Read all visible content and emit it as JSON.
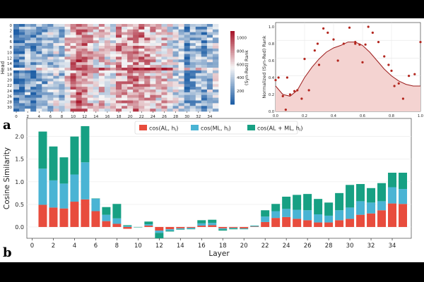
{
  "chart_data": [
    {
      "type": "heatmap",
      "panel": "a",
      "title": "",
      "ylabel": "Head",
      "xlabel": "",
      "x_ticks": [
        "0",
        "2",
        "4",
        "6",
        "8",
        "10",
        "12",
        "14",
        "16",
        "18",
        "20",
        "22",
        "24",
        "26",
        "28",
        "30",
        "32",
        "34"
      ],
      "y_ticks": [
        "0",
        "2",
        "4",
        "6",
        "8",
        "10",
        "12",
        "14",
        "16",
        "18",
        "20",
        "22",
        "24",
        "26",
        "28",
        "30"
      ],
      "n_layers": 36,
      "n_heads": 32,
      "colorbar": {
        "label": "(Syn-Red) Rank",
        "ticks": [
          "200",
          "400",
          "600",
          "800",
          "1000"
        ],
        "range": [
          0,
          1100
        ],
        "low_color": "#1f5fa6",
        "mid_color": "#f5f5f5",
        "high_color": "#a8182c"
      },
      "layer_bias": [
        0.12,
        0.18,
        0.28,
        0.2,
        0.3,
        0.25,
        0.35,
        0.42,
        0.3,
        0.55,
        0.72,
        0.82,
        0.78,
        0.62,
        0.55,
        0.58,
        0.52,
        0.5,
        0.7,
        0.66,
        0.68,
        0.74,
        0.72,
        0.66,
        0.62,
        0.55,
        0.58,
        0.5,
        0.42,
        0.38,
        0.2,
        0.25,
        0.3,
        0.22,
        0.35,
        0.4
      ]
    },
    {
      "type": "scatter",
      "panel": "a",
      "xlabel": "",
      "ylabel": "Normalized (Syn-Red) Rank",
      "xlim": [
        0,
        1.0
      ],
      "ylim": [
        0,
        1.05
      ],
      "x_ticks": [
        "0.0",
        "0.2",
        "0.4",
        "0.6",
        "0.8",
        "1.0"
      ],
      "y_ticks": [
        "0.0",
        "0.2",
        "0.4",
        "0.6",
        "0.8",
        "1.0"
      ],
      "points": [
        [
          0.0,
          0.37
        ],
        [
          0.02,
          0.4
        ],
        [
          0.05,
          0.18
        ],
        [
          0.07,
          0.02
        ],
        [
          0.1,
          0.2
        ],
        [
          0.13,
          0.24
        ],
        [
          0.15,
          0.25
        ],
        [
          0.18,
          0.15
        ],
        [
          0.2,
          0.62
        ],
        [
          0.23,
          0.25
        ],
        [
          0.27,
          0.72
        ],
        [
          0.29,
          0.8
        ],
        [
          0.3,
          0.55
        ],
        [
          0.33,
          0.98
        ],
        [
          0.36,
          0.93
        ],
        [
          0.4,
          0.85
        ],
        [
          0.43,
          0.6
        ],
        [
          0.47,
          0.8
        ],
        [
          0.51,
          0.99
        ],
        [
          0.55,
          0.82
        ],
        [
          0.58,
          0.79
        ],
        [
          0.6,
          0.58
        ],
        [
          0.62,
          0.79
        ],
        [
          0.64,
          1.0
        ],
        [
          0.67,
          0.93
        ],
        [
          0.71,
          0.82
        ],
        [
          0.75,
          0.65
        ],
        [
          0.78,
          0.55
        ],
        [
          0.8,
          0.48
        ],
        [
          0.82,
          0.3
        ],
        [
          0.85,
          0.33
        ],
        [
          0.88,
          0.15
        ],
        [
          0.92,
          0.42
        ],
        [
          0.96,
          0.44
        ],
        [
          1.0,
          0.82
        ],
        [
          0.08,
          0.4
        ],
        [
          0.55,
          0.8
        ]
      ],
      "trend": [
        [
          0.0,
          0.3
        ],
        [
          0.05,
          0.2
        ],
        [
          0.1,
          0.18
        ],
        [
          0.15,
          0.25
        ],
        [
          0.2,
          0.4
        ],
        [
          0.25,
          0.52
        ],
        [
          0.3,
          0.62
        ],
        [
          0.35,
          0.7
        ],
        [
          0.4,
          0.75
        ],
        [
          0.45,
          0.78
        ],
        [
          0.5,
          0.82
        ],
        [
          0.55,
          0.82
        ],
        [
          0.6,
          0.78
        ],
        [
          0.65,
          0.7
        ],
        [
          0.7,
          0.6
        ],
        [
          0.75,
          0.5
        ],
        [
          0.8,
          0.42
        ],
        [
          0.85,
          0.36
        ],
        [
          0.9,
          0.32
        ],
        [
          0.95,
          0.3
        ],
        [
          1.0,
          0.3
        ]
      ],
      "marker_color": "#b3261e",
      "fill_color": "#f4d3d1"
    },
    {
      "type": "bar",
      "panel": "b",
      "stacked": true,
      "xlabel": "Layer",
      "ylabel": "Cosine Similarity",
      "ylim": [
        -0.25,
        2.4
      ],
      "x_ticks": [
        "0",
        "2",
        "4",
        "6",
        "8",
        "10",
        "12",
        "14",
        "16",
        "18",
        "20",
        "22",
        "24",
        "26",
        "28",
        "30",
        "32",
        "34"
      ],
      "y_ticks": [
        "0.0",
        "0.5",
        "1.0",
        "1.5",
        "2.0"
      ],
      "categories": [
        1,
        2,
        3,
        4,
        5,
        6,
        7,
        8,
        9,
        10,
        11,
        12,
        13,
        14,
        15,
        16,
        17,
        18,
        19,
        20,
        21,
        22,
        23,
        24,
        25,
        26,
        27,
        28,
        29,
        30,
        31,
        32,
        33,
        34,
        35
      ],
      "legend": [
        "cos(AL,  h",
        "cos(ML,  h",
        "cos(AL + ML,  h"
      ],
      "legend_sub": "l",
      "series": [
        {
          "name": "cos(AL, h_l)",
          "color": "#e84c3d",
          "values": [
            0.49,
            0.43,
            0.41,
            0.56,
            0.61,
            0.35,
            0.13,
            0.07,
            -0.04,
            0.0,
            0.03,
            -0.08,
            -0.05,
            -0.03,
            -0.02,
            0.03,
            0.04,
            -0.03,
            -0.02,
            -0.03,
            0.01,
            0.11,
            0.2,
            0.22,
            0.18,
            0.15,
            0.1,
            0.1,
            0.15,
            0.18,
            0.27,
            0.3,
            0.37,
            0.52,
            0.51
          ]
        },
        {
          "name": "cos(ML, h_l)",
          "color": "#4ab4d4",
          "values": [
            0.8,
            0.6,
            0.55,
            0.6,
            0.82,
            0.28,
            0.14,
            0.12,
            0.02,
            0.0,
            0.03,
            -0.05,
            -0.03,
            -0.02,
            -0.02,
            0.05,
            0.05,
            -0.02,
            -0.01,
            -0.01,
            0.02,
            0.12,
            0.15,
            0.18,
            0.2,
            0.22,
            0.18,
            0.15,
            0.22,
            0.25,
            0.3,
            0.24,
            0.2,
            0.36,
            0.33
          ]
        },
        {
          "name": "cos(AL + ML, h_l)",
          "color": "#17a083",
          "values": [
            0.82,
            0.75,
            0.58,
            0.84,
            0.8,
            0.0,
            0.17,
            0.32,
            0.02,
            0.0,
            0.06,
            -0.12,
            -0.02,
            -0.01,
            -0.01,
            0.07,
            0.07,
            -0.03,
            -0.02,
            -0.01,
            0.0,
            0.14,
            0.16,
            0.27,
            0.33,
            0.36,
            0.34,
            0.29,
            0.38,
            0.5,
            0.38,
            0.32,
            0.4,
            0.32,
            0.36
          ]
        }
      ]
    }
  ],
  "labels": {
    "panel_a": "a",
    "panel_b": "b"
  }
}
